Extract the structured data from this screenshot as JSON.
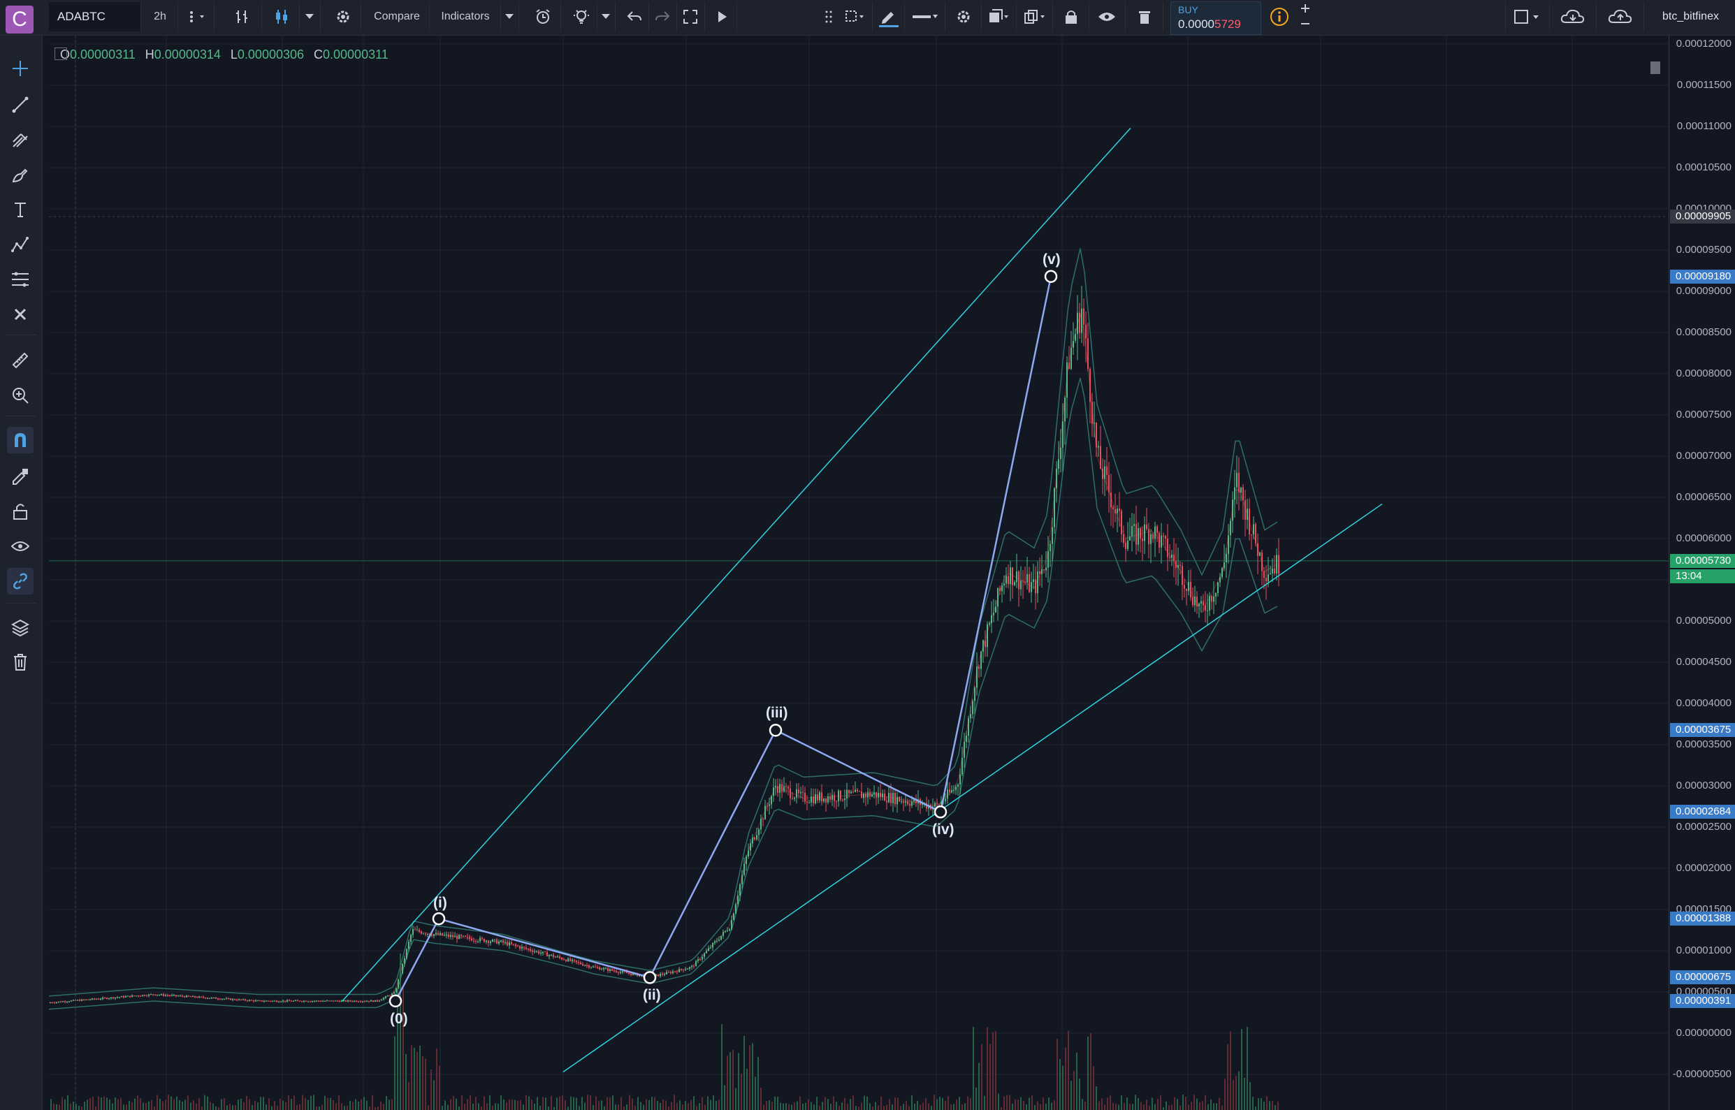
{
  "app": {
    "logo_letter": "C"
  },
  "toolbar": {
    "symbol": "ADABTC",
    "interval": "2h",
    "compare_label": "Compare",
    "indicators_label": "Indicators",
    "buy_label": "BUY",
    "buy_price_prefix": "0.0000",
    "buy_price_highlight": "5729",
    "exchange": "btc_bitfinex"
  },
  "ohlc": {
    "o_label": "O",
    "o_value": "0.00000311",
    "h_label": "H",
    "h_value": "0.00000314",
    "l_label": "L",
    "l_value": "0.00000306",
    "c_label": "C",
    "c_value": "0.00000311"
  },
  "price_axis": {
    "ticks": [
      "0.00012000",
      "0.00011500",
      "0.00011000",
      "0.00010500",
      "0.00010000",
      "0.00009500",
      "0.00009000",
      "0.00008500",
      "0.00008000",
      "0.00007500",
      "0.00007000",
      "0.00006500",
      "0.00006000",
      "0.00005500",
      "0.00005000",
      "0.00004500",
      "0.00004000",
      "0.00003500",
      "0.00003000",
      "0.00002500",
      "0.00002000",
      "0.00001500",
      "0.00001000",
      "0.00000500",
      "0.00000000",
      "-0.00000500"
    ],
    "crosshair_price": "0.00009905",
    "badges": [
      {
        "text": "0.00009180",
        "color": "#3a7bc8"
      },
      {
        "text": "0.00005730",
        "color": "#26a269"
      },
      {
        "text": "13:04",
        "color": "#26a269"
      },
      {
        "text": "0.00003675",
        "color": "#3a7bc8"
      },
      {
        "text": "0.00002684",
        "color": "#3a7bc8"
      },
      {
        "text": "0.00001388",
        "color": "#3a7bc8"
      },
      {
        "text": "0.00000675",
        "color": "#3a7bc8"
      },
      {
        "text": "0.00000391",
        "color": "#3a7bc8"
      }
    ]
  },
  "waves": [
    {
      "label": "(0)",
      "price": 3.91e-06
    },
    {
      "label": "(i)",
      "price": 1.388e-05
    },
    {
      "label": "(ii)",
      "price": 6.75e-06
    },
    {
      "label": "(iii)",
      "price": 3.675e-05
    },
    {
      "label": "(iv)",
      "price": 2.684e-05
    },
    {
      "label": "(v)",
      "price": 9.18e-05
    }
  ],
  "colors": {
    "background": "#131722",
    "wave_line": "#8fa8f2",
    "channel": "#2fd4e0",
    "up_candle": "#53b987",
    "down_candle": "#eb4d5c",
    "bollinger": "#2e6e68"
  },
  "icons": [
    "crosshair-icon",
    "trend-line-icon",
    "pitchfork-icon",
    "brush-icon",
    "text-icon",
    "pattern-icon",
    "fib-icon",
    "remove-icon",
    "ruler-icon",
    "zoom-icon",
    "magnet-icon",
    "stay-drawing-icon",
    "lock-icon",
    "eye-icon",
    "link-icon",
    "layers-icon",
    "trash-icon"
  ]
}
